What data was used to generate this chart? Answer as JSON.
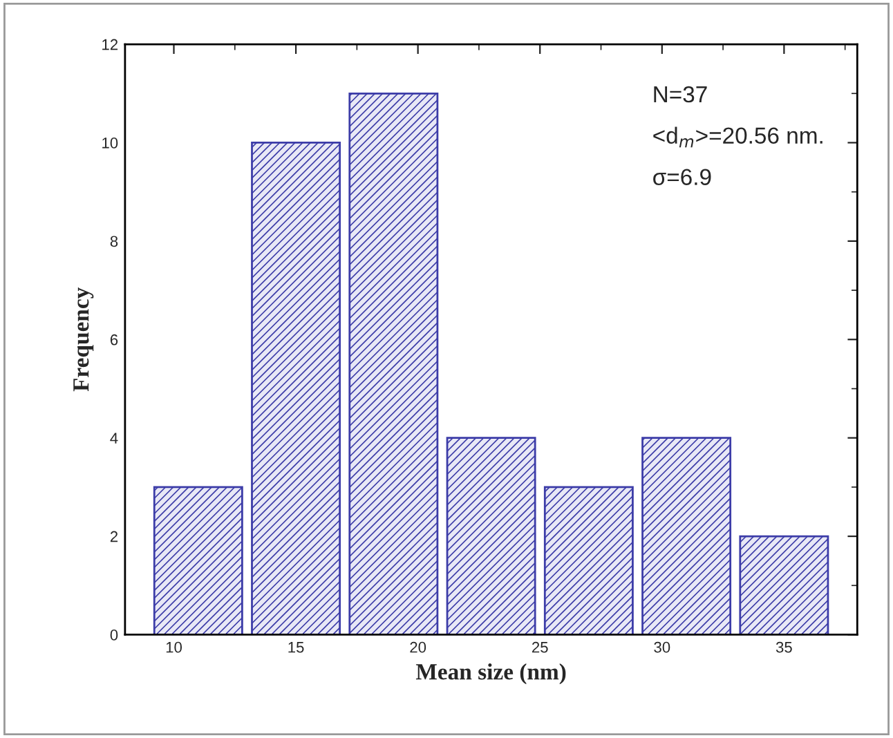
{
  "chart_data": {
    "type": "histogram",
    "xlabel": "Mean size (nm)",
    "ylabel": "Frequency",
    "bins": [
      9,
      13,
      17,
      21,
      25,
      29,
      33,
      37
    ],
    "values": [
      3,
      10,
      11,
      4,
      3,
      4,
      2
    ],
    "color": "#3c3ca8",
    "xlim": [
      8,
      38
    ],
    "xticks": [
      10,
      15,
      20,
      25,
      30,
      35
    ],
    "ylim": [
      0,
      12
    ],
    "yticks": [
      0,
      2,
      4,
      6,
      8,
      10,
      12
    ],
    "grid": false,
    "annotations": [
      "N=37",
      "<d$_{m}$>=20.56 nm.",
      "σ=6.9"
    ]
  }
}
